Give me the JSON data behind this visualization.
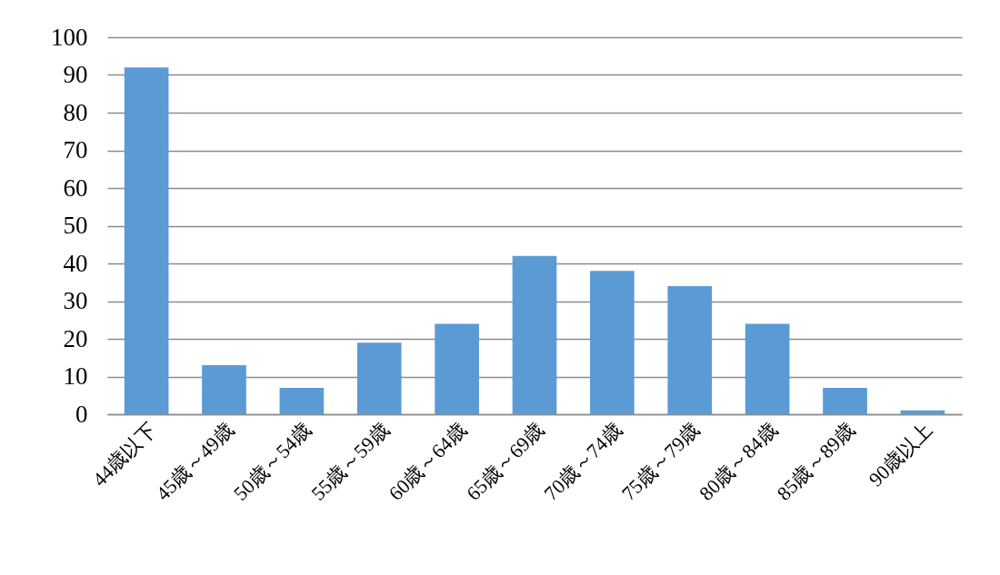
{
  "chart_data": {
    "type": "bar",
    "categories": [
      "44歳以下",
      "45歳～49歳",
      "50歳～54歳",
      "55歳～59歳",
      "60歳～64歳",
      "65歳～69歳",
      "70歳～74歳",
      "75歳～79歳",
      "80歳～84歳",
      "85歳～89歳",
      "90歳以上"
    ],
    "values": [
      92,
      13,
      7,
      19,
      24,
      42,
      38,
      34,
      24,
      7,
      1
    ],
    "color": "#5b9bd5",
    "ylim": [
      0,
      100
    ],
    "yticks": [
      0,
      10,
      20,
      30,
      40,
      50,
      60,
      70,
      80,
      90,
      100
    ],
    "grid": "y"
  }
}
